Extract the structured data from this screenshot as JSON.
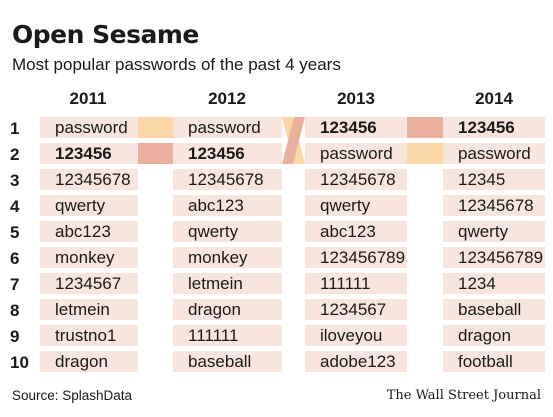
{
  "chart_data": {
    "type": "table",
    "title": "Open Sesame",
    "subtitle": "Most popular passwords of the past 4 years",
    "columns": [
      "2011",
      "2012",
      "2013",
      "2014"
    ],
    "ranks": [
      "1",
      "2",
      "3",
      "4",
      "5",
      "6",
      "7",
      "8",
      "9",
      "10"
    ],
    "rows": [
      [
        "password",
        "password",
        "123456",
        "123456"
      ],
      [
        "123456",
        "123456",
        "password",
        "password"
      ],
      [
        "12345678",
        "12345678",
        "12345678",
        "12345"
      ],
      [
        "qwerty",
        "abc123",
        "qwerty",
        "12345678"
      ],
      [
        "abc123",
        "qwerty",
        "abc123",
        "qwerty"
      ],
      [
        "monkey",
        "monkey",
        "123456789",
        "123456789"
      ],
      [
        "1234567",
        "letmein",
        "111111",
        "1234"
      ],
      [
        "letmein",
        "dragon",
        "1234567",
        "baseball"
      ],
      [
        "trustno1",
        "111111",
        "iloveyou",
        "dragon"
      ],
      [
        "dragon",
        "baseball",
        "adobe123",
        "football"
      ]
    ],
    "highlight": "123456",
    "colors": {
      "cell": "#f8e6de",
      "swap_light": "#fbd7a8",
      "swap_dark": "#ebaf9e"
    },
    "source": "Source: SplashData",
    "credit": "The Wall Street Journal"
  }
}
